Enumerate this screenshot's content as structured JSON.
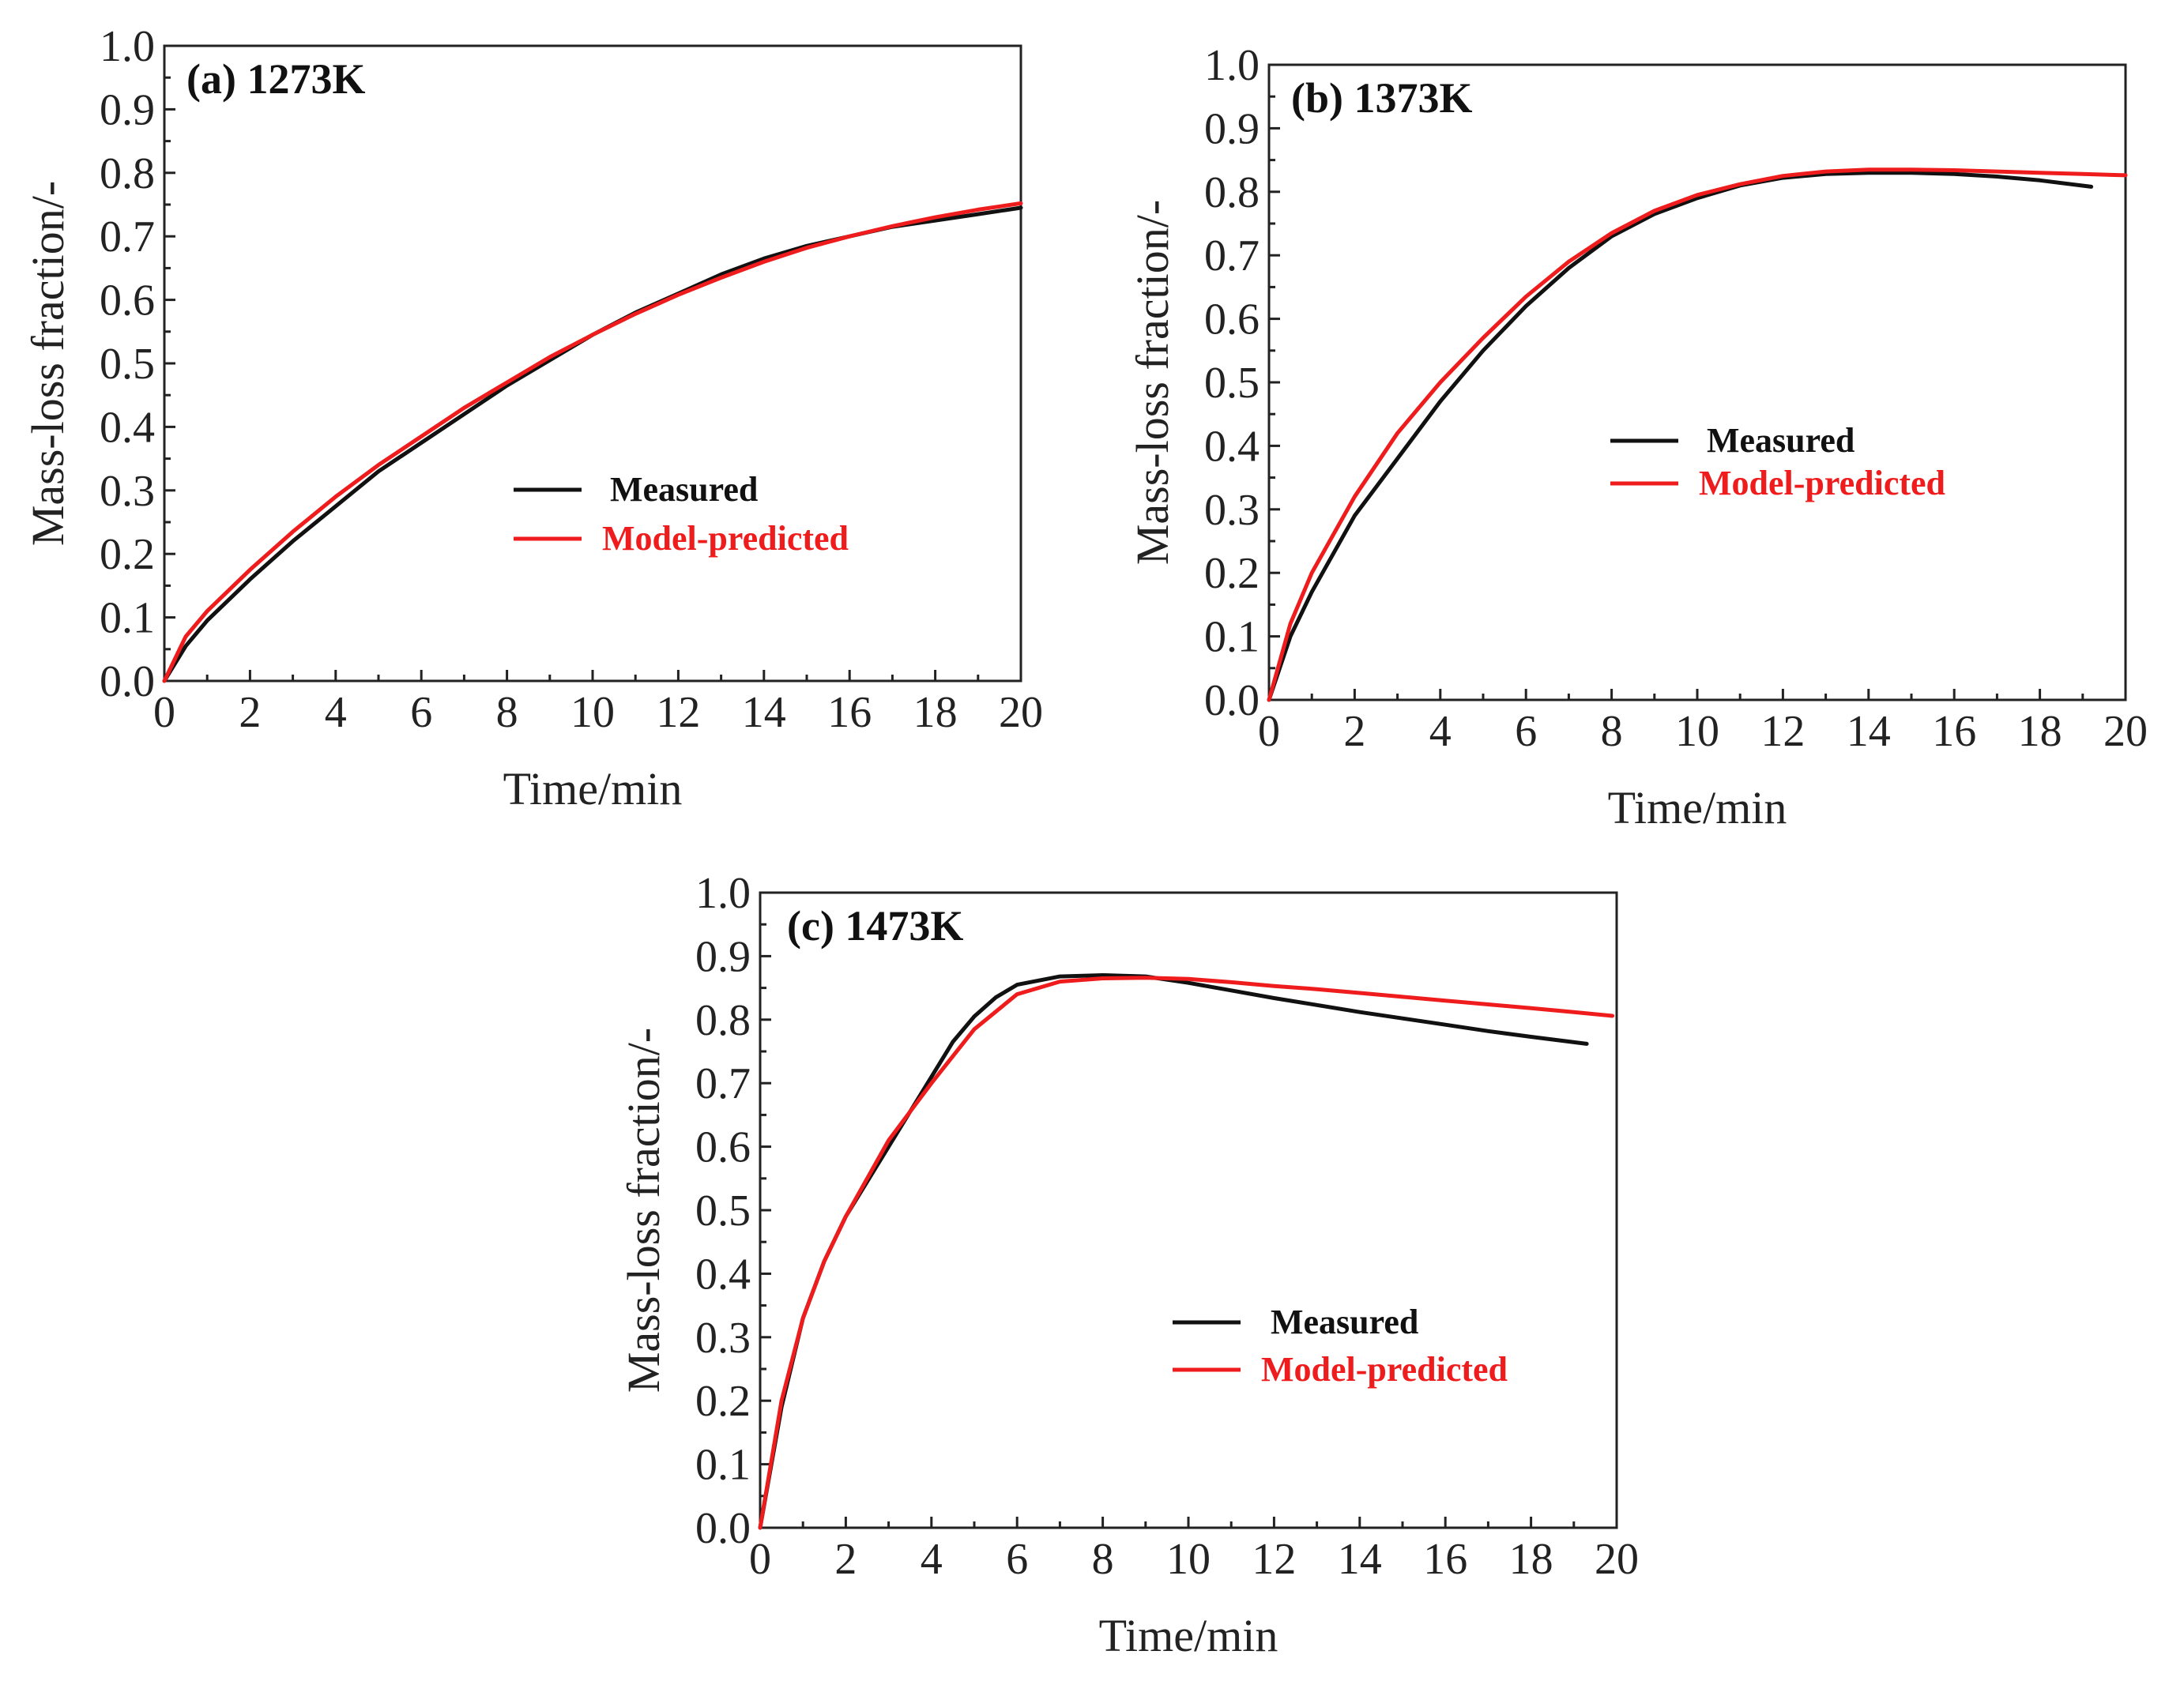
{
  "chart_data": [
    {
      "id": "a",
      "type": "line",
      "title": "(a) 1273K",
      "xlabel": "Time/min",
      "ylabel": "Mass-loss fraction/-",
      "xlim": [
        0,
        20
      ],
      "ylim": [
        0,
        1.0
      ],
      "xticks": [
        "0",
        "2",
        "4",
        "6",
        "8",
        "10",
        "12",
        "14",
        "16",
        "18",
        "20"
      ],
      "yticks": [
        "0.0",
        "0.1",
        "0.2",
        "0.3",
        "0.4",
        "0.5",
        "0.6",
        "0.7",
        "0.8",
        "0.9",
        "1.0"
      ],
      "legend_position": "center",
      "series": [
        {
          "name": "Measured",
          "color": "#111111",
          "x": [
            0,
            0.5,
            1,
            2,
            3,
            4,
            5,
            6,
            7,
            8,
            9,
            10,
            11,
            12,
            13,
            14,
            15,
            16,
            17,
            18,
            19,
            20
          ],
          "y": [
            0,
            0.055,
            0.095,
            0.16,
            0.22,
            0.275,
            0.33,
            0.375,
            0.42,
            0.465,
            0.505,
            0.545,
            0.58,
            0.61,
            0.64,
            0.665,
            0.685,
            0.7,
            0.715,
            0.725,
            0.735,
            0.745
          ]
        },
        {
          "name": "Model-predicted",
          "color": "#ee1c1c",
          "x": [
            0,
            0.5,
            1,
            2,
            3,
            4,
            5,
            6,
            7,
            8,
            9,
            10,
            11,
            12,
            13,
            14,
            15,
            16,
            17,
            18,
            19,
            20
          ],
          "y": [
            0,
            0.07,
            0.11,
            0.175,
            0.235,
            0.29,
            0.34,
            0.385,
            0.43,
            0.47,
            0.51,
            0.545,
            0.578,
            0.608,
            0.635,
            0.66,
            0.682,
            0.7,
            0.716,
            0.73,
            0.742,
            0.752
          ]
        }
      ]
    },
    {
      "id": "b",
      "type": "line",
      "title": "(b) 1373K",
      "xlabel": "Time/min",
      "ylabel": "Mass-loss fraction/-",
      "xlim": [
        0,
        20
      ],
      "ylim": [
        0,
        1.0
      ],
      "xticks": [
        "0",
        "2",
        "4",
        "6",
        "8",
        "10",
        "12",
        "14",
        "16",
        "18",
        "20"
      ],
      "yticks": [
        "0.0",
        "0.1",
        "0.2",
        "0.3",
        "0.4",
        "0.5",
        "0.6",
        "0.7",
        "0.8",
        "0.9",
        "1.0"
      ],
      "legend_position": "center-right",
      "series": [
        {
          "name": "Measured",
          "color": "#111111",
          "x": [
            0,
            0.5,
            1,
            2,
            3,
            4,
            5,
            6,
            7,
            8,
            9,
            10,
            11,
            12,
            13,
            14,
            15,
            16,
            17,
            18,
            19.2
          ],
          "y": [
            0,
            0.1,
            0.17,
            0.29,
            0.38,
            0.47,
            0.55,
            0.62,
            0.68,
            0.73,
            0.765,
            0.79,
            0.81,
            0.822,
            0.828,
            0.83,
            0.83,
            0.828,
            0.824,
            0.818,
            0.808
          ]
        },
        {
          "name": "Model-predicted",
          "color": "#ee1c1c",
          "x": [
            0,
            0.5,
            1,
            2,
            3,
            4,
            5,
            6,
            7,
            8,
            9,
            10,
            11,
            12,
            13,
            14,
            15,
            16,
            17,
            18,
            19,
            20
          ],
          "y": [
            0,
            0.12,
            0.2,
            0.32,
            0.42,
            0.5,
            0.57,
            0.635,
            0.69,
            0.735,
            0.77,
            0.795,
            0.812,
            0.825,
            0.832,
            0.835,
            0.835,
            0.834,
            0.832,
            0.83,
            0.828,
            0.826
          ]
        }
      ]
    },
    {
      "id": "c",
      "type": "line",
      "title": "(c) 1473K",
      "xlabel": "Time/min",
      "ylabel": "Mass-loss fraction/-",
      "xlim": [
        0,
        20
      ],
      "ylim": [
        0,
        1.0
      ],
      "xticks": [
        "0",
        "2",
        "4",
        "6",
        "8",
        "10",
        "12",
        "14",
        "16",
        "18",
        "20"
      ],
      "yticks": [
        "0.0",
        "0.1",
        "0.2",
        "0.3",
        "0.4",
        "0.5",
        "0.6",
        "0.7",
        "0.8",
        "0.9",
        "1.0"
      ],
      "legend_position": "center-right",
      "series": [
        {
          "name": "Measured",
          "color": "#111111",
          "x": [
            0,
            0.5,
            1,
            1.5,
            2,
            3,
            4,
            4.5,
            5,
            5.5,
            6,
            7,
            8,
            9,
            10,
            11,
            12,
            13,
            14,
            15,
            16,
            17,
            18,
            19.3
          ],
          "y": [
            0,
            0.19,
            0.33,
            0.42,
            0.49,
            0.6,
            0.71,
            0.765,
            0.805,
            0.835,
            0.855,
            0.868,
            0.87,
            0.868,
            0.858,
            0.846,
            0.834,
            0.823,
            0.812,
            0.802,
            0.792,
            0.782,
            0.773,
            0.762
          ]
        },
        {
          "name": "Model-predicted",
          "color": "#ee1c1c",
          "x": [
            0,
            0.5,
            1,
            1.5,
            2,
            3,
            4,
            5,
            6,
            7,
            8,
            9,
            10,
            11,
            12,
            13,
            14,
            15,
            16,
            17,
            18,
            19,
            19.9
          ],
          "y": [
            0,
            0.2,
            0.33,
            0.42,
            0.49,
            0.61,
            0.7,
            0.785,
            0.84,
            0.86,
            0.865,
            0.866,
            0.864,
            0.859,
            0.853,
            0.848,
            0.842,
            0.836,
            0.83,
            0.824,
            0.818,
            0.812,
            0.806
          ]
        }
      ]
    }
  ]
}
